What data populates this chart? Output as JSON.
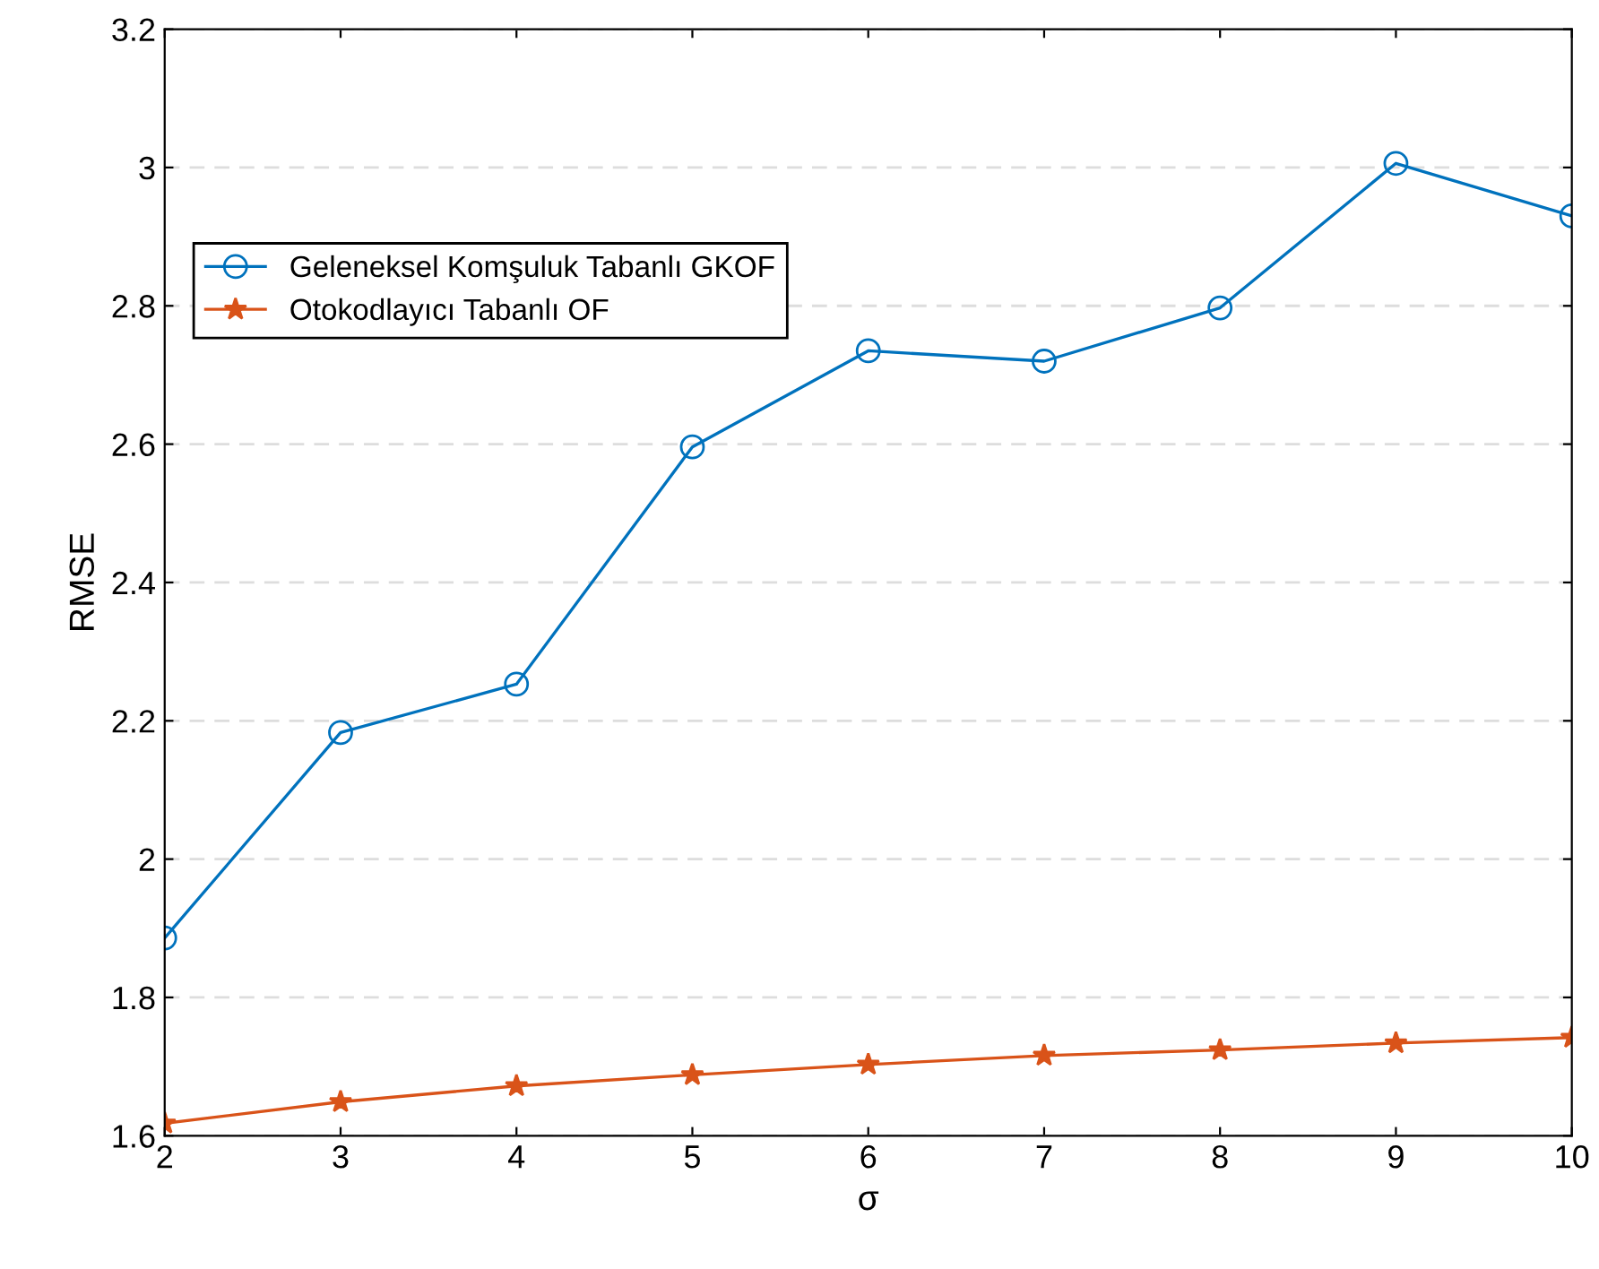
{
  "chart_data": {
    "type": "line",
    "xlabel": "σ",
    "ylabel": "RMSE",
    "x": [
      2,
      3,
      4,
      5,
      6,
      7,
      8,
      9,
      10
    ],
    "series": [
      {
        "name": "Geleneksel Komşuluk Tabanlı GKOF",
        "color": "#0072bd",
        "marker": "circle",
        "values": [
          1.886,
          2.183,
          2.253,
          2.596,
          2.735,
          2.72,
          2.797,
          3.006,
          2.93
        ]
      },
      {
        "name": "Otokodlayıcı Tabanlı OF",
        "color": "#d95319",
        "marker": "star",
        "values": [
          1.618,
          1.649,
          1.672,
          1.688,
          1.703,
          1.716,
          1.724,
          1.734,
          1.742
        ]
      }
    ],
    "xlim": [
      2,
      10
    ],
    "xticks": [
      2,
      3,
      4,
      5,
      6,
      7,
      8,
      9,
      10
    ],
    "ylim": [
      1.6,
      3.2
    ],
    "yticks": [
      {
        "value": 1.6,
        "label": "1.6"
      },
      {
        "value": 1.8,
        "label": "1.8"
      },
      {
        "value": 2,
        "label": "2"
      },
      {
        "value": 2.2,
        "label": "2.2"
      },
      {
        "value": 2.4,
        "label": "2.4"
      },
      {
        "value": 2.6,
        "label": "2.6"
      },
      {
        "value": 2.8,
        "label": "2.8"
      },
      {
        "value": 3,
        "label": "3"
      },
      {
        "value": 3.2,
        "label": "3.2"
      }
    ],
    "grid": "y",
    "legend": "top left",
    "line_style": "solid"
  }
}
